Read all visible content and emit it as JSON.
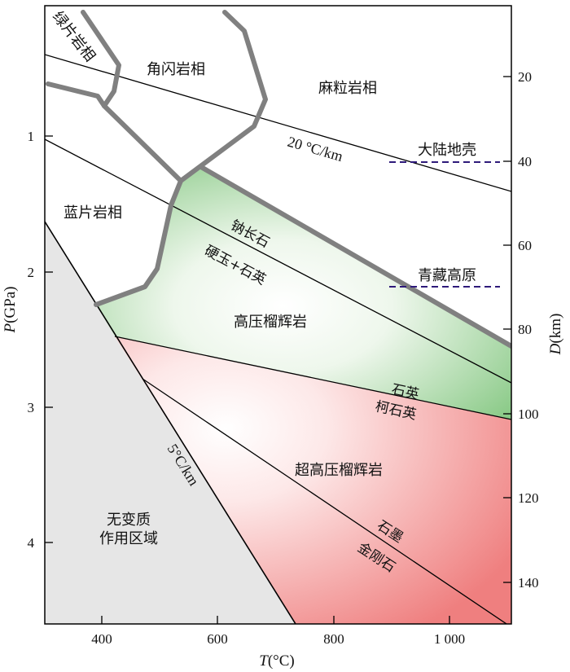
{
  "axes": {
    "x_title_symbol": "T",
    "x_title_unit": "(°C)",
    "y_left_title_symbol": "P",
    "y_left_title_unit": "(GPa)",
    "y_right_title_symbol": "D",
    "y_right_title_unit": "(km)",
    "x_ticks": [
      "400",
      "600",
      "800",
      "1 000"
    ],
    "y_left_ticks": [
      "1",
      "2",
      "3",
      "4"
    ],
    "y_right_ticks": [
      "20",
      "40",
      "60",
      "80",
      "100",
      "120",
      "140"
    ]
  },
  "facies": {
    "greenschist": "绿片岩相",
    "amphibolite": "角闪岩相",
    "granulite": "麻粒岩相",
    "blueschist": "蓝片岩相",
    "hp_eclogite": "高压榴辉岩",
    "uhp_eclogite": "超高压榴辉岩",
    "no_metamorphism_line1": "无变质",
    "no_metamorphism_line2": "作用区域"
  },
  "reactions": {
    "albite": "钠长石",
    "jadeite_quartz": "硬玉+石英",
    "quartz": "石英",
    "coesite": "柯石英",
    "graphite": "石墨",
    "diamond": "金刚石"
  },
  "geotherms": {
    "warm": "20 °C/km",
    "cold": "5°C/km"
  },
  "crust_refs": {
    "continental_crust": "大陆地壳",
    "tibet_plateau": "青藏高原"
  },
  "colors": {
    "hp_eclogite_fill": "#7dc47a",
    "uhp_eclogite_fill": "#f08080",
    "no_metamorphism_fill": "#e6e6e6",
    "facies_boundary": "#808080",
    "crust_marker": "#2e1a7a"
  }
}
